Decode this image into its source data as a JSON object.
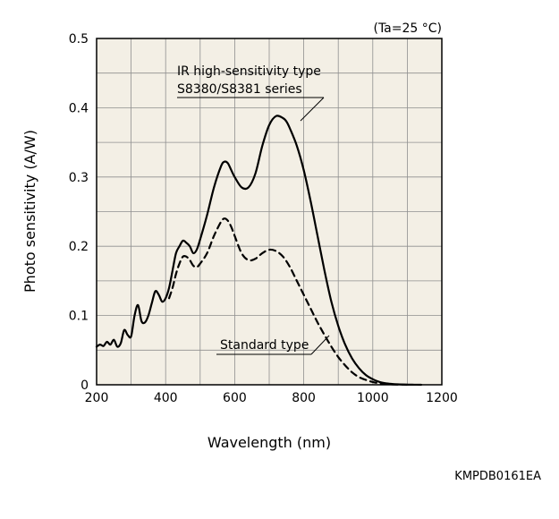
{
  "chart_data": {
    "type": "line",
    "condition": "(Ta=25 °C)",
    "xlabel": "Wavelength (nm)",
    "ylabel": "Photo sensitivity (A/W)",
    "xlim": [
      200,
      1200
    ],
    "ylim": [
      0,
      0.5
    ],
    "x_ticks": [
      200,
      400,
      600,
      800,
      1000,
      1200
    ],
    "y_ticks": [
      0,
      0.1,
      0.2,
      0.3,
      0.4,
      0.5
    ],
    "y_tick_labels": [
      "0",
      "0.1",
      "0.2",
      "0.3",
      "0.4",
      "0.5"
    ],
    "grid": true,
    "series": [
      {
        "name": "IR high-sensitivity type S8380/S8381 series",
        "label_lines": [
          "IR high-sensitivity type",
          "S8380/S8381 series"
        ],
        "style": "solid",
        "x": [
          200,
          210,
          220,
          230,
          240,
          250,
          260,
          270,
          280,
          290,
          300,
          310,
          320,
          330,
          340,
          350,
          360,
          370,
          380,
          390,
          400,
          410,
          420,
          430,
          440,
          450,
          460,
          470,
          480,
          490,
          500,
          520,
          540,
          560,
          570,
          580,
          590,
          600,
          620,
          640,
          660,
          680,
          700,
          720,
          740,
          750,
          760,
          780,
          800,
          820,
          840,
          860,
          880,
          900,
          920,
          940,
          960,
          980,
          1000,
          1020,
          1040,
          1060,
          1080,
          1100,
          1120,
          1140
        ],
        "y": [
          0.055,
          0.058,
          0.056,
          0.062,
          0.058,
          0.065,
          0.055,
          0.06,
          0.079,
          0.072,
          0.07,
          0.1,
          0.115,
          0.092,
          0.09,
          0.1,
          0.118,
          0.135,
          0.13,
          0.12,
          0.125,
          0.14,
          0.165,
          0.19,
          0.2,
          0.208,
          0.205,
          0.2,
          0.19,
          0.195,
          0.21,
          0.245,
          0.285,
          0.315,
          0.322,
          0.32,
          0.31,
          0.3,
          0.285,
          0.285,
          0.305,
          0.345,
          0.375,
          0.388,
          0.385,
          0.38,
          0.37,
          0.345,
          0.31,
          0.265,
          0.215,
          0.165,
          0.12,
          0.085,
          0.058,
          0.038,
          0.024,
          0.014,
          0.008,
          0.004,
          0.002,
          0.001,
          0.0005,
          0.0002,
          0.0001,
          0
        ]
      },
      {
        "name": "Standard type",
        "label_lines": [
          "Standard type"
        ],
        "style": "dashed",
        "x": [
          410,
          420,
          430,
          440,
          450,
          460,
          470,
          480,
          490,
          500,
          520,
          540,
          560,
          570,
          580,
          590,
          600,
          620,
          640,
          660,
          680,
          700,
          720,
          740,
          760,
          780,
          800,
          820,
          840,
          860,
          880,
          900,
          920,
          940,
          960,
          980,
          1000,
          1020,
          1040,
          1060,
          1080,
          1100
        ],
        "y": [
          0.125,
          0.14,
          0.16,
          0.175,
          0.185,
          0.185,
          0.18,
          0.172,
          0.17,
          0.175,
          0.19,
          0.215,
          0.235,
          0.24,
          0.237,
          0.228,
          0.215,
          0.19,
          0.18,
          0.182,
          0.19,
          0.195,
          0.193,
          0.185,
          0.17,
          0.15,
          0.13,
          0.11,
          0.09,
          0.072,
          0.055,
          0.04,
          0.028,
          0.018,
          0.011,
          0.007,
          0.004,
          0.002,
          0.001,
          0.0005,
          0.0002,
          0
        ]
      }
    ]
  },
  "figure_code": "KMPDB0161EA"
}
